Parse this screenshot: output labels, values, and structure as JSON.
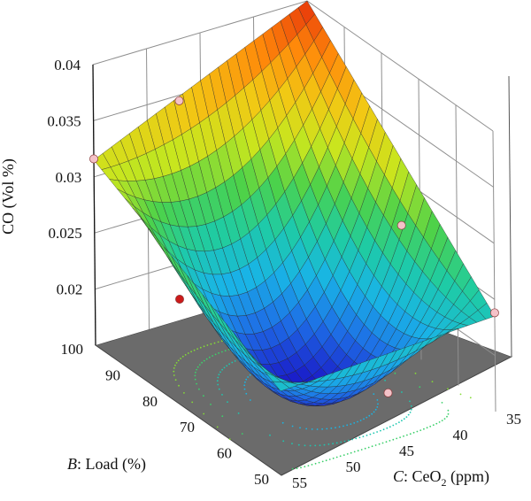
{
  "chart_data": {
    "type": "surface3d",
    "title": "",
    "zlabel": "CO (Vol %)",
    "blabel_prefix": "B",
    "blabel_rest": ": Load (%)",
    "clabel_prefix": "C",
    "clabel_mid": ": CeO",
    "clabel_sub": "2",
    "clabel_end": " (ppm)",
    "z_ticks": [
      "0.04",
      "0.035",
      "0.03",
      "0.025",
      "0.02"
    ],
    "b_ticks": [
      "100",
      "90",
      "80",
      "70",
      "60",
      "50"
    ],
    "c_ticks": [
      "35",
      "40",
      "45",
      "50",
      "55"
    ],
    "zlim": [
      0.015,
      0.04
    ],
    "blim": [
      50,
      100
    ],
    "clim": [
      35,
      55
    ],
    "surface_corners": [
      {
        "load": 100,
        "ceo2": 55,
        "co": 0.0315
      },
      {
        "load": 100,
        "ceo2": 35,
        "co": 0.04
      },
      {
        "load": 50,
        "ceo2": 35,
        "co": 0.0235
      },
      {
        "load": 50,
        "ceo2": 55,
        "co": 0.0225
      }
    ],
    "minimum": {
      "load": 72,
      "ceo2": 47,
      "co": 0.0152
    },
    "design_points": [
      {
        "load": 100,
        "ceo2": 55,
        "co": 0.0316,
        "color": "#f4c2c8"
      },
      {
        "load": 100,
        "ceo2": 47,
        "co": 0.0345,
        "color": "#f4c2c8"
      },
      {
        "load": 100,
        "ceo2": 35,
        "co": 0.0405,
        "color": "#f4c2c8"
      },
      {
        "load": 50,
        "ceo2": 35,
        "co": 0.0238,
        "color": "#f4c2c8"
      },
      {
        "load": 75,
        "ceo2": 35,
        "co": 0.0258,
        "color": "#f4c2c8"
      },
      {
        "load": 50,
        "ceo2": 45,
        "co": 0.0195,
        "color": "#f4c2c8"
      },
      {
        "load": 100,
        "ceo2": 55,
        "co": 0.0166,
        "color": "#cc1a1a"
      }
    ],
    "colors": {
      "floor": "#6b6b6b",
      "grid": "#8f8f8f",
      "mesh": "#2a2a2a",
      "colormap": [
        "#1a1ac8",
        "#1e6ee6",
        "#19b4e6",
        "#1ecba6",
        "#4cd24a",
        "#c8e61e",
        "#f2c814",
        "#ff8a0a",
        "#e6320a"
      ]
    }
  }
}
